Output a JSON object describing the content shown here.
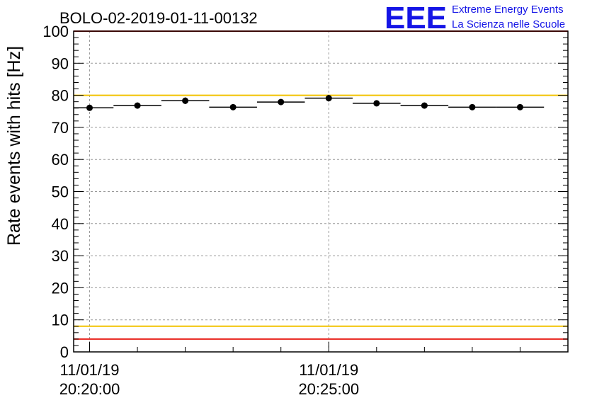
{
  "title": "BOLO-02-2019-01-11-00132",
  "logo": {
    "text": "EEE",
    "line1": "Extreme Energy Events",
    "line2": "La Scienza nelle Scuole"
  },
  "chart_data": {
    "type": "scatter",
    "ylabel": "Rate events with hits [Hz]",
    "ylim": [
      0,
      100
    ],
    "y_ticks": [
      "0",
      "10",
      "20",
      "30",
      "40",
      "50",
      "60",
      "70",
      "80",
      "90",
      "100"
    ],
    "x_range": [
      "11/01/19 20:19:40",
      "11/01/19 20:30:00"
    ],
    "x_tick_labels": [
      {
        "date": "11/01/19",
        "time": "20:20:00"
      },
      {
        "date": "11/01/19",
        "time": "20:25:00"
      }
    ],
    "grid": true,
    "series": [
      {
        "x": [
          "20:20:00",
          "20:21:00",
          "20:22:00",
          "20:23:00",
          "20:24:00",
          "20:25:00",
          "20:26:00",
          "20:27:00",
          "20:28:00",
          "20:29:00"
        ],
        "y": [
          76.1,
          76.8,
          78.3,
          76.3,
          77.9,
          79.1,
          77.5,
          76.8,
          76.3,
          76.3
        ],
        "yerr": [
          0.5,
          0.5,
          0.6,
          0.5,
          0.5,
          0.6,
          0.5,
          0.5,
          0.5,
          0.5
        ]
      }
    ],
    "reference_lines": [
      {
        "y": 4,
        "color": "#e8201a"
      },
      {
        "y": 8,
        "color": "#f2c200"
      },
      {
        "y": 80,
        "color": "#f2c200"
      },
      {
        "y": 100,
        "color": "#e8201a"
      }
    ]
  }
}
